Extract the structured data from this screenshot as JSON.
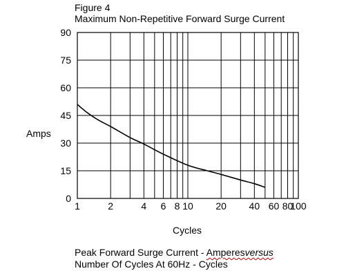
{
  "figure_label": "Figure 4",
  "chart_data": {
    "type": "line",
    "title": "Maximum Non-Repetitive Forward Surge Current",
    "xlabel": "Cycles",
    "ylabel": "Amps",
    "x_scale": "log",
    "xlim": [
      1,
      100
    ],
    "ylim": [
      0,
      90
    ],
    "grid": true,
    "x_ticks": [
      {
        "value": 1,
        "label": "1"
      },
      {
        "value": 2,
        "label": "2"
      },
      {
        "value": 4,
        "label": "4"
      },
      {
        "value": 6,
        "label": "6"
      },
      {
        "value": 8,
        "label": "8"
      },
      {
        "value": 10,
        "label": "10"
      },
      {
        "value": 20,
        "label": "20"
      },
      {
        "value": 40,
        "label": "40"
      },
      {
        "value": 60,
        "label": "60"
      },
      {
        "value": 80,
        "label": "80"
      },
      {
        "value": 100,
        "label": "100"
      }
    ],
    "x_gridlines": [
      1,
      2,
      3,
      4,
      5,
      6,
      7,
      8,
      9,
      10,
      20,
      30,
      40,
      50,
      60,
      70,
      80,
      90,
      100
    ],
    "y_ticks": [
      {
        "value": 0,
        "label": "0"
      },
      {
        "value": 15,
        "label": "15"
      },
      {
        "value": 30,
        "label": "30"
      },
      {
        "value": 45,
        "label": "45"
      },
      {
        "value": 60,
        "label": "60"
      },
      {
        "value": 75,
        "label": "75"
      },
      {
        "value": 90,
        "label": "90"
      }
    ],
    "series": [
      {
        "x": [
          1,
          1.2,
          1.5,
          2,
          3,
          4,
          6,
          10,
          15,
          20,
          30,
          40,
          50
        ],
        "y": [
          51,
          47,
          43,
          39,
          33,
          29.5,
          24,
          18,
          15,
          13,
          10,
          8,
          6
        ]
      }
    ]
  },
  "caption": {
    "line1_prefix": "Peak Forward Surge Current - ",
    "line1_underlined": "Amperes",
    "line1_italic": "versus",
    "line2": "Number Of Cycles At 60Hz - Cycles"
  }
}
